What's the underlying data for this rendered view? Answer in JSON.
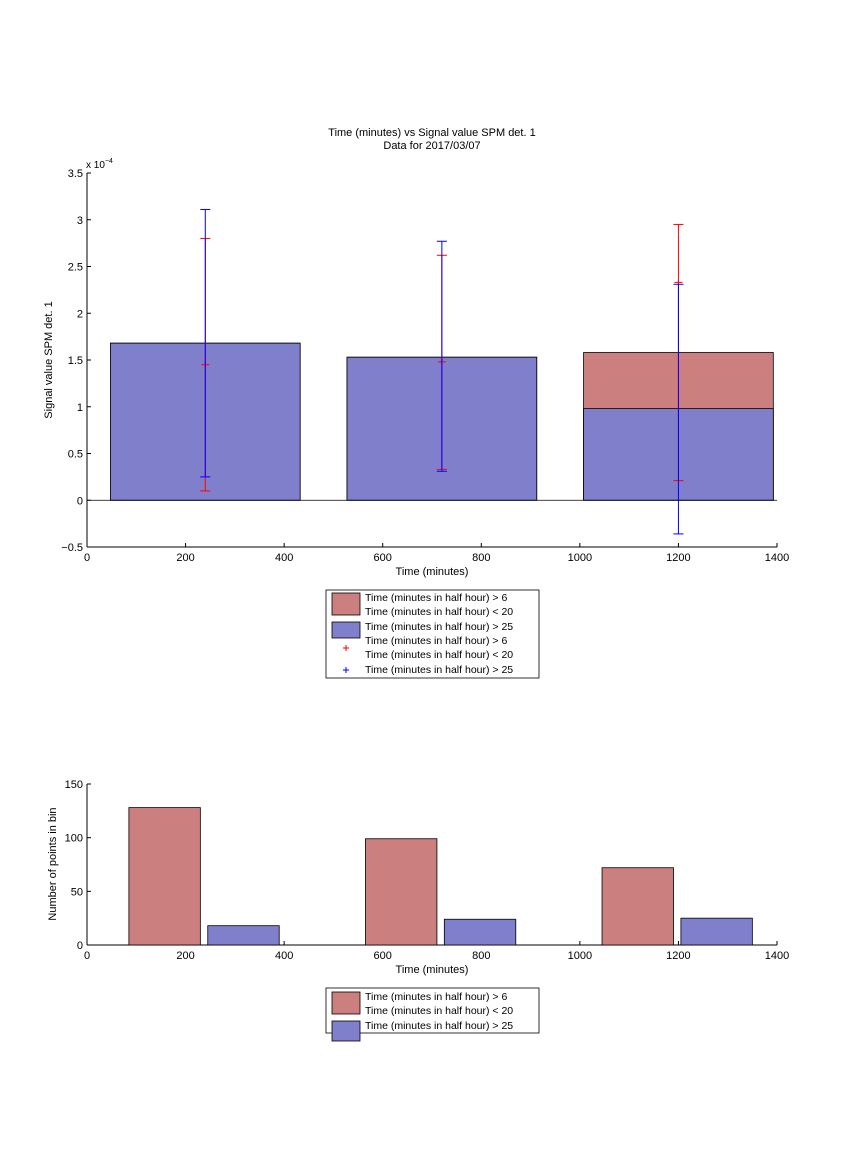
{
  "colors": {
    "red_series": "#CC7F7F",
    "blue_series": "#7F7FCC",
    "red_error": "#FF0000",
    "blue_error": "#0000FF"
  },
  "chart_data": [
    {
      "type": "bar",
      "title": "Time (minutes) vs Signal value SPM det. 1",
      "subtitle": "Data for 2017/03/07",
      "xlabel": "Time (minutes)",
      "ylabel": "Signal value SPM det. 1",
      "y_exponent_label": "x 10",
      "y_exponent_power": "−4",
      "xlim": [
        0,
        1400
      ],
      "ylim": [
        -0.5,
        3.5
      ],
      "y_scale_factor": 0.0001,
      "x_ticks": [
        "0",
        "200",
        "400",
        "600",
        "800",
        "1000",
        "1200",
        "1400"
      ],
      "y_ticks": [
        "−0.5",
        "0",
        "0.5",
        "1",
        "1.5",
        "2",
        "2.5",
        "3",
        "3.5"
      ],
      "bar_width": 385,
      "categories": [
        240,
        720,
        1200
      ],
      "series": [
        {
          "name": "Time (minutes in half hour) > 6\nTime (minutes in half hour) < 20",
          "color_key": "red_series",
          "values": [
            1.68,
            1.53,
            1.58
          ]
        },
        {
          "name": "Time (minutes in half hour) > 25",
          "color_key": "blue_series",
          "values": [
            1.68,
            1.53,
            0.98
          ]
        }
      ],
      "errorbars": [
        {
          "name": "Time (minutes in half hour) > 6\nTime (minutes in half hour) < 20",
          "color_key": "red_error",
          "points": [
            {
              "x": 240,
              "low": 0.1,
              "mid": 1.45,
              "high": 2.8
            },
            {
              "x": 720,
              "low": 0.33,
              "mid": 1.48,
              "high": 2.62
            },
            {
              "x": 1200,
              "low": 0.21,
              "mid": 2.33,
              "high": 2.95
            }
          ]
        },
        {
          "name": "Time (minutes in half hour) > 25",
          "color_key": "blue_error",
          "points": [
            {
              "x": 240,
              "low": 0.25,
              "high": 3.11
            },
            {
              "x": 720,
              "low": 0.31,
              "high": 2.77
            },
            {
              "x": 1200,
              "low": -0.36,
              "high": 2.31
            }
          ]
        }
      ],
      "legend": {
        "placement": "below",
        "entries": [
          {
            "kind": "patch",
            "color_key": "red_series",
            "lines": [
              "Time (minutes in half hour) > 6",
              "Time (minutes in half hour) < 20"
            ]
          },
          {
            "kind": "patch",
            "color_key": "blue_series",
            "lines": [
              "Time (minutes in half hour) > 25"
            ]
          },
          {
            "kind": "marker",
            "color_key": "red_error",
            "lines": [
              "Time (minutes in half hour) > 6",
              "Time (minutes in half hour) < 20"
            ]
          },
          {
            "kind": "marker",
            "color_key": "blue_error",
            "lines": [
              "Time (minutes in half hour) > 25"
            ]
          }
        ]
      }
    },
    {
      "type": "bar",
      "xlabel": "Time (minutes)",
      "ylabel": "Number of points in bin",
      "xlim": [
        0,
        1400
      ],
      "ylim": [
        0,
        150
      ],
      "x_ticks": [
        "0",
        "200",
        "400",
        "600",
        "800",
        "1000",
        "1200",
        "1400"
      ],
      "y_ticks": [
        "0",
        "50",
        "100",
        "150"
      ],
      "groups": [
        {
          "x_left": 85,
          "x_right": 230,
          "color_key": "red_series",
          "value": 128
        },
        {
          "x_left": 245,
          "x_right": 390,
          "color_key": "blue_series",
          "value": 18
        },
        {
          "x_left": 565,
          "x_right": 710,
          "color_key": "red_series",
          "value": 99
        },
        {
          "x_left": 725,
          "x_right": 870,
          "color_key": "blue_series",
          "value": 24
        },
        {
          "x_left": 1045,
          "x_right": 1190,
          "color_key": "red_series",
          "value": 72
        },
        {
          "x_left": 1205,
          "x_right": 1350,
          "color_key": "blue_series",
          "value": 25
        }
      ],
      "series": [
        {
          "name": "Time (minutes in half hour) > 6\nTime (minutes in half hour) < 20",
          "color_key": "red_series",
          "x": [
            160,
            640,
            1120
          ],
          "values": [
            128,
            99,
            72
          ]
        },
        {
          "name": "Time (minutes in half hour) > 25",
          "color_key": "blue_series",
          "x": [
            320,
            800,
            1280
          ],
          "values": [
            18,
            24,
            25
          ]
        }
      ],
      "legend": {
        "placement": "below",
        "entries": [
          {
            "kind": "patch",
            "color_key": "red_series",
            "lines": [
              "Time (minutes in half hour) > 6",
              "Time (minutes in half hour) < 20"
            ]
          },
          {
            "kind": "patch",
            "color_key": "blue_series",
            "lines": [
              "Time (minutes in half hour) > 25"
            ]
          }
        ]
      }
    }
  ]
}
